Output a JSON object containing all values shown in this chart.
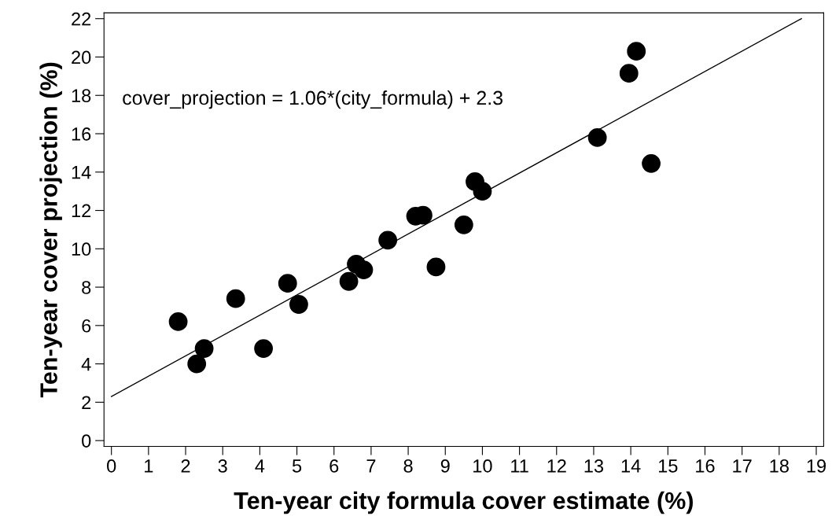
{
  "chart_data": {
    "type": "scatter",
    "xlabel": "Ten-year city formula cover estimate (%)",
    "ylabel": "Ten-year cover projection (%)",
    "series": [
      {
        "color": "#000000",
        "marker": "circle",
        "x": [
          1.8,
          2.3,
          2.5,
          3.35,
          4.1,
          4.75,
          5.05,
          6.4,
          6.6,
          6.8,
          7.45,
          8.2,
          8.4,
          8.75,
          9.5,
          9.8,
          10.0,
          13.1,
          13.95,
          14.15,
          14.55
        ],
        "values": [
          6.2,
          4.0,
          4.8,
          7.4,
          4.8,
          8.2,
          7.1,
          8.3,
          9.2,
          8.9,
          10.45,
          11.7,
          11.75,
          9.05,
          11.25,
          13.5,
          13.0,
          15.8,
          19.15,
          20.3,
          14.45
        ]
      },
      {
        "type": "line",
        "color": "#000000",
        "x": [
          0,
          18.6
        ],
        "values": [
          2.3,
          22.0
        ],
        "marker": "none"
      }
    ],
    "annotations": [
      "cover_projection = 1.06*(city_formula) + 2.3"
    ],
    "xlim": [
      -0.2,
      19.2
    ],
    "ylim": [
      -0.3,
      22.3
    ],
    "xticks": [
      0,
      1,
      2,
      3,
      4,
      5,
      6,
      7,
      8,
      9,
      10,
      11,
      12,
      13,
      14,
      15,
      16,
      17,
      18,
      19
    ],
    "yticks": [
      0,
      2,
      4,
      6,
      8,
      10,
      12,
      14,
      16,
      18,
      20,
      22
    ],
    "grid": false,
    "legend": false
  }
}
